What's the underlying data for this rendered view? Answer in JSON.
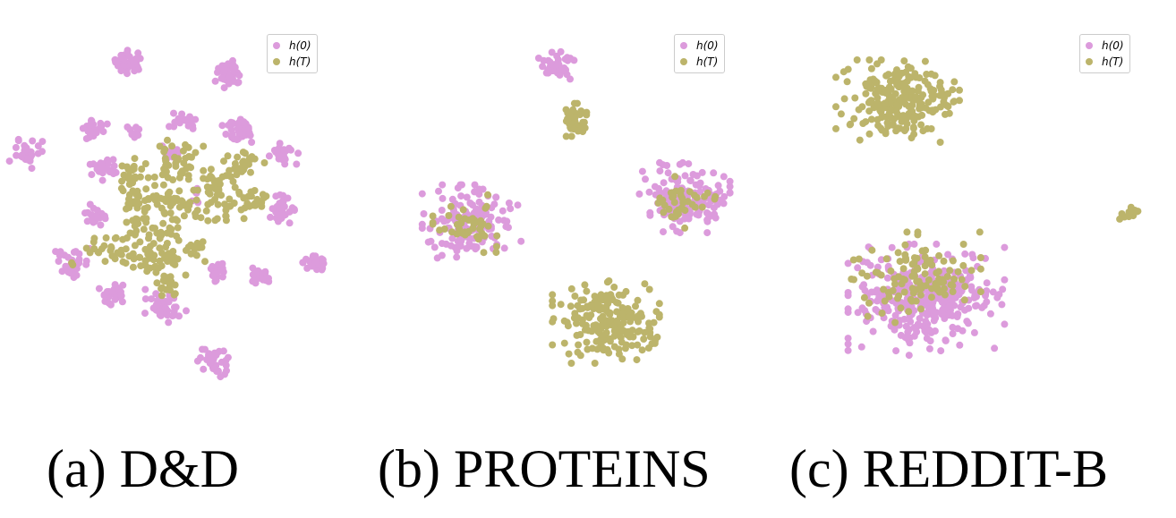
{
  "colors": {
    "h0": "#dc9bdc",
    "hT": "#bcb46b"
  },
  "legend": {
    "h0": "h(0)",
    "hT": "h(T)"
  },
  "captions": [
    "(a) D&D",
    "(b) PROTEINS",
    "(c) REDDIT-B"
  ],
  "chart_data": [
    {
      "type": "scatter",
      "title": "(a) D&D",
      "xlabel": "",
      "ylabel": "",
      "grid": false,
      "axes_visible": false,
      "legend_position": "top-right",
      "series": [
        {
          "name": "h(0)",
          "color": "#dc9bdc",
          "clusters": [
            {
              "cx": 140,
              "cy": 60,
              "sx": 8,
              "sy": 6,
              "n": 40
            },
            {
              "cx": 250,
              "cy": 72,
              "sx": 7,
              "sy": 7,
              "n": 35
            },
            {
              "cx": 100,
              "cy": 132,
              "sx": 7,
              "sy": 6,
              "n": 25
            },
            {
              "cx": 145,
              "cy": 138,
              "sx": 4,
              "sy": 4,
              "n": 8
            },
            {
              "cx": 200,
              "cy": 125,
              "sx": 7,
              "sy": 6,
              "n": 20
            },
            {
              "cx": 263,
              "cy": 137,
              "sx": 9,
              "sy": 8,
              "n": 40
            },
            {
              "cx": 24,
              "cy": 162,
              "sx": 8,
              "sy": 7,
              "n": 30
            },
            {
              "cx": 110,
              "cy": 178,
              "sx": 7,
              "sy": 6,
              "n": 25
            },
            {
              "cx": 312,
              "cy": 163,
              "sx": 7,
              "sy": 6,
              "n": 25
            },
            {
              "cx": 102,
              "cy": 230,
              "sx": 6,
              "sy": 5,
              "n": 20
            },
            {
              "cx": 311,
              "cy": 224,
              "sx": 8,
              "sy": 7,
              "n": 30
            },
            {
              "cx": 75,
              "cy": 284,
              "sx": 9,
              "sy": 7,
              "n": 35
            },
            {
              "cx": 348,
              "cy": 284,
              "sx": 7,
              "sy": 7,
              "n": 30
            },
            {
              "cx": 238,
              "cy": 293,
              "sx": 6,
              "sy": 5,
              "n": 20
            },
            {
              "cx": 284,
              "cy": 297,
              "sx": 7,
              "sy": 5,
              "n": 20
            },
            {
              "cx": 122,
              "cy": 318,
              "sx": 7,
              "sy": 6,
              "n": 25
            },
            {
              "cx": 180,
              "cy": 332,
              "sx": 10,
              "sy": 8,
              "n": 40
            },
            {
              "cx": 236,
              "cy": 395,
              "sx": 9,
              "sy": 7,
              "n": 35
            },
            {
              "cx": 185,
              "cy": 160,
              "sx": 6,
              "sy": 5,
              "n": 12
            },
            {
              "cx": 215,
              "cy": 210,
              "sx": 4,
              "sy": 4,
              "n": 5
            }
          ]
        },
        {
          "name": "h(T)",
          "color": "#bcb46b",
          "clusters": [
            {
              "cx": 190,
              "cy": 172,
              "sx": 14,
              "sy": 11,
              "n": 40
            },
            {
              "cx": 140,
              "cy": 185,
              "sx": 9,
              "sy": 8,
              "n": 20
            },
            {
              "cx": 235,
              "cy": 190,
              "sx": 14,
              "sy": 11,
              "n": 35
            },
            {
              "cx": 270,
              "cy": 172,
              "sx": 12,
              "sy": 8,
              "n": 25
            },
            {
              "cx": 145,
              "cy": 215,
              "sx": 10,
              "sy": 9,
              "n": 25
            },
            {
              "cx": 180,
              "cy": 212,
              "sx": 10,
              "sy": 9,
              "n": 25
            },
            {
              "cx": 205,
              "cy": 225,
              "sx": 9,
              "sy": 8,
              "n": 18
            },
            {
              "cx": 248,
              "cy": 228,
              "sx": 9,
              "sy": 8,
              "n": 20
            },
            {
              "cx": 275,
              "cy": 212,
              "sx": 12,
              "sy": 8,
              "n": 22
            },
            {
              "cx": 145,
              "cy": 242,
              "sx": 10,
              "sy": 8,
              "n": 22
            },
            {
              "cx": 178,
              "cy": 250,
              "sx": 9,
              "sy": 8,
              "n": 20
            },
            {
              "cx": 115,
              "cy": 268,
              "sx": 12,
              "sy": 8,
              "n": 25
            },
            {
              "cx": 150,
              "cy": 280,
              "sx": 9,
              "sy": 7,
              "n": 18
            },
            {
              "cx": 210,
              "cy": 268,
              "sx": 10,
              "sy": 7,
              "n": 18
            },
            {
              "cx": 178,
              "cy": 280,
              "sx": 9,
              "sy": 9,
              "n": 22
            },
            {
              "cx": 182,
              "cy": 305,
              "sx": 9,
              "sy": 8,
              "n": 18
            },
            {
              "cx": 78,
              "cy": 283,
              "sx": 2,
              "sy": 2,
              "n": 2
            }
          ]
        }
      ]
    },
    {
      "type": "scatter",
      "title": "(b) PROTEINS",
      "xlabel": "",
      "ylabel": "",
      "grid": false,
      "axes_visible": false,
      "legend_position": "top-right",
      "series": [
        {
          "name": "h(0)",
          "color": "#dc9bdc",
          "clusters": [
            {
              "cx": 167,
              "cy": 64,
              "sx": 9,
              "sy": 7,
              "n": 40
            },
            {
              "cx": 72,
              "cy": 238,
              "sx": 24,
              "sy": 18,
              "n": 150
            },
            {
              "cx": 310,
              "cy": 211,
              "sx": 22,
              "sy": 17,
              "n": 140
            }
          ]
        },
        {
          "name": "h(T)",
          "color": "#bcb46b",
          "clusters": [
            {
              "cx": 187,
              "cy": 124,
              "sx": 8,
              "sy": 8,
              "n": 40
            },
            {
              "cx": 70,
              "cy": 240,
              "sx": 18,
              "sy": 14,
              "n": 45
            },
            {
              "cx": 305,
              "cy": 215,
              "sx": 17,
              "sy": 13,
              "n": 40
            },
            {
              "cx": 222,
              "cy": 350,
              "sx": 26,
              "sy": 20,
              "n": 200
            }
          ]
        }
      ]
    },
    {
      "type": "scatter",
      "title": "(c) REDDIT-B",
      "xlabel": "",
      "ylabel": "",
      "grid": false,
      "axes_visible": false,
      "legend_position": "top-right",
      "series": [
        {
          "name": "h(0)",
          "color": "#dc9bdc",
          "clusters": [
            {
              "cx": 130,
              "cy": 325,
              "sx": 38,
              "sy": 27,
              "n": 330
            }
          ]
        },
        {
          "name": "h(T)",
          "color": "#bcb46b",
          "clusters": [
            {
              "cx": 98,
              "cy": 103,
              "sx": 30,
              "sy": 20,
              "n": 220
            },
            {
              "cx": 356,
              "cy": 228,
              "sx": 5,
              "sy": 3,
              "n": 15
            },
            {
              "cx": 115,
              "cy": 300,
              "sx": 33,
              "sy": 22,
              "n": 110
            }
          ]
        }
      ]
    }
  ]
}
